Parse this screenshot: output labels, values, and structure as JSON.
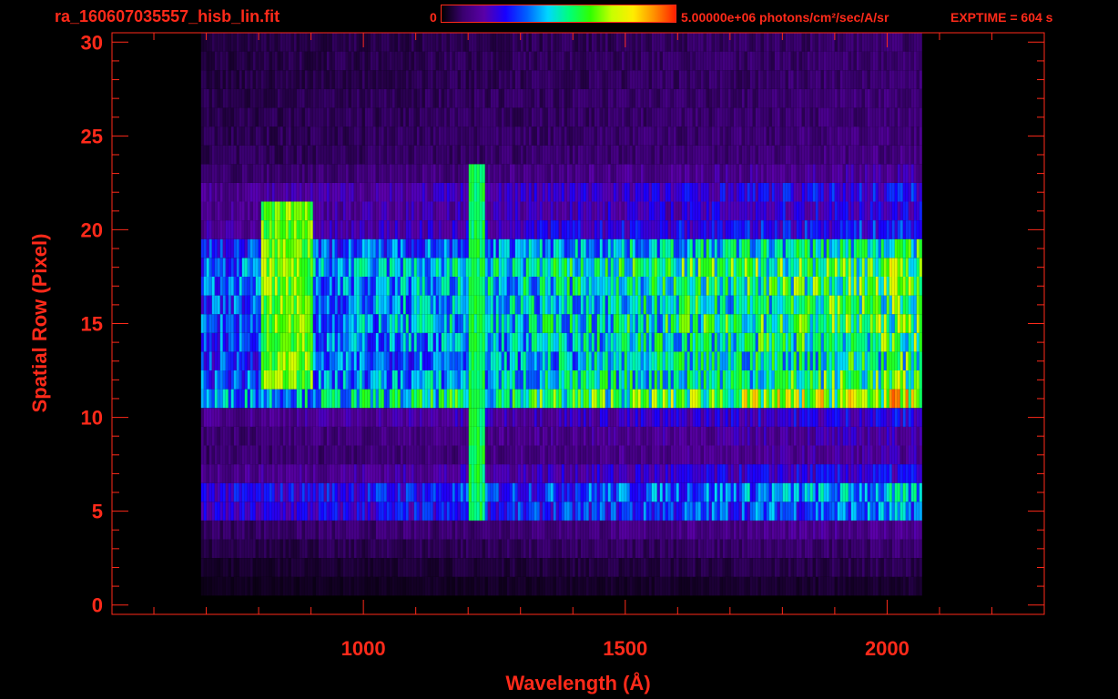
{
  "header": {
    "filename": "ra_160607035557_hisb_lin.fit",
    "colorbar_min": "0",
    "colorbar_max": "5.00000e+06 photons/cm²/sec/A/sr",
    "exptime": "EXPTIME = 604 s"
  },
  "colors": {
    "axis": "#ff2a1a",
    "background": "#000000",
    "colormap": [
      "#000000",
      "#3a0070",
      "#5a00a8",
      "#1800ff",
      "#0060ff",
      "#00d8ff",
      "#00ff7a",
      "#30ff00",
      "#c8ff00",
      "#ffee00",
      "#ff9000",
      "#ff2000"
    ]
  },
  "chart_data": {
    "type": "heatmap",
    "title": "ra_160607035557_hisb_lin.fit",
    "xlabel": "Wavelength (Å)",
    "ylabel": "Spatial Row (Pixel)",
    "xlim": [
      520,
      2300
    ],
    "ylim": [
      -0.5,
      30.5
    ],
    "x_ticks": [
      1000,
      1500,
      2000
    ],
    "y_ticks": [
      0,
      5,
      10,
      15,
      20,
      25,
      30
    ],
    "colorbar": {
      "min": 0,
      "max": 5000000,
      "units": "photons/cm²/sec/A/sr"
    },
    "signal_extent_x": [
      690,
      2065
    ],
    "rows": [
      {
        "row": 0,
        "level": 0.0
      },
      {
        "row": 1,
        "level": 0.05
      },
      {
        "row": 2,
        "level": 0.08
      },
      {
        "row": 3,
        "level": 0.12
      },
      {
        "row": 4,
        "level": 0.18
      },
      {
        "row": 5,
        "level": 0.45
      },
      {
        "row": 6,
        "level": 0.5
      },
      {
        "row": 7,
        "level": 0.3
      },
      {
        "row": 8,
        "level": 0.2
      },
      {
        "row": 9,
        "level": 0.22
      },
      {
        "row": 10,
        "level": 0.3
      },
      {
        "row": 11,
        "level": 0.85
      },
      {
        "row": 12,
        "level": 0.7
      },
      {
        "row": 13,
        "level": 0.65
      },
      {
        "row": 14,
        "level": 0.68
      },
      {
        "row": 15,
        "level": 0.72
      },
      {
        "row": 16,
        "level": 0.7
      },
      {
        "row": 17,
        "level": 0.72
      },
      {
        "row": 18,
        "level": 0.75
      },
      {
        "row": 19,
        "level": 0.62
      },
      {
        "row": 20,
        "level": 0.35
      },
      {
        "row": 21,
        "level": 0.3
      },
      {
        "row": 22,
        "level": 0.32
      },
      {
        "row": 23,
        "level": 0.2
      },
      {
        "row": 24,
        "level": 0.15
      },
      {
        "row": 25,
        "level": 0.14
      },
      {
        "row": 26,
        "level": 0.13
      },
      {
        "row": 27,
        "level": 0.13
      },
      {
        "row": 28,
        "level": 0.12
      },
      {
        "row": 29,
        "level": 0.12
      },
      {
        "row": 30,
        "level": 0.11
      }
    ],
    "features": [
      {
        "name": "Lyman-alpha",
        "x": 1216,
        "rows": [
          5,
          23
        ],
        "level": 0.6
      },
      {
        "name": "blob",
        "x": [
          800,
          900
        ],
        "rows": [
          12,
          21
        ],
        "level": 0.7
      }
    ]
  }
}
